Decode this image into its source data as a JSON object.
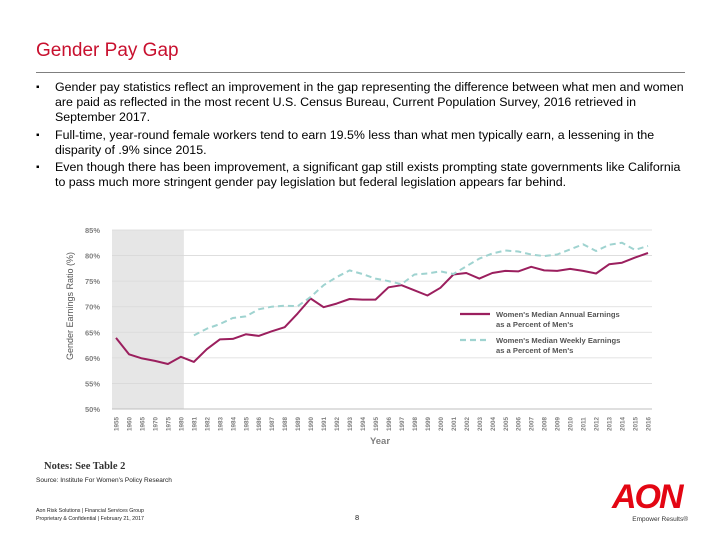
{
  "title": "Gender Pay Gap",
  "bullets": [
    "Gender pay statistics reflect an improvement in the gap representing the difference between what men and women are paid as reflected in the most recent U.S. Census Bureau, Current Population Survey, 2016 retrieved in September 2017.",
    "Full-time, year-round female workers tend to earn 19.5% less than what men typically earn, a lessening in the disparity of .9% since 2015.",
    "Even though there has been improvement, a significant gap still exists prompting state governments like California to pass much more stringent gender pay legislation but federal legislation appears far behind."
  ],
  "bullet_marker": "▪",
  "notes": "Notes: See Table 2",
  "source": "Source:  Institute For Women's Policy Research",
  "footer": {
    "line1": "Aon Risk Solutions | Financial Services Group",
    "line2": "Proprietary & Confidential | February 21, 2017",
    "page": "8"
  },
  "logo": {
    "text": "AON",
    "tagline": "Empower Results®"
  },
  "colors": {
    "title": "#c8102e",
    "annual": "#9b1f5e",
    "weekly": "#9fd3d0",
    "shade": "#e6e6e6"
  },
  "chart_data": {
    "type": "line",
    "xlabel": "Year",
    "ylabel": "Gender Earnings Ratio (%)",
    "ylim": [
      50,
      85
    ],
    "yticks": [
      "50%",
      "55%",
      "60%",
      "65%",
      "70%",
      "75%",
      "80%",
      "85%"
    ],
    "x": [
      "1955",
      "1960",
      "1965",
      "1970",
      "1975",
      "1980",
      "1981",
      "1982",
      "1983",
      "1984",
      "1985",
      "1986",
      "1987",
      "1988",
      "1989",
      "1990",
      "1991",
      "1992",
      "1993",
      "1994",
      "1995",
      "1996",
      "1997",
      "1998",
      "1999",
      "2000",
      "2001",
      "2002",
      "2003",
      "2004",
      "2005",
      "2006",
      "2007",
      "2008",
      "2009",
      "2010",
      "2011",
      "2012",
      "2013",
      "2014",
      "2015",
      "2016"
    ],
    "shaded_through": "1980",
    "legend_position": "right",
    "series": [
      {
        "name": "Women's Median Annual Earnings as a Percent of Men's",
        "style": "solid",
        "values": [
          63.9,
          60.7,
          59.9,
          59.4,
          58.8,
          60.2,
          59.2,
          61.7,
          63.6,
          63.7,
          64.6,
          64.3,
          65.2,
          66.0,
          68.7,
          71.6,
          69.9,
          70.6,
          71.5,
          71.4,
          71.4,
          73.8,
          74.2,
          73.2,
          72.2,
          73.7,
          76.3,
          76.6,
          75.5,
          76.6,
          77.0,
          76.9,
          77.8,
          77.1,
          77.0,
          77.4,
          77.0,
          76.5,
          78.3,
          78.6,
          79.6,
          80.5
        ]
      },
      {
        "name": "Women's Median Weekly Earnings as a Percent of Men's",
        "style": "dashed",
        "values": [
          null,
          null,
          null,
          null,
          null,
          null,
          64.4,
          65.7,
          66.6,
          67.8,
          68.1,
          69.5,
          70.0,
          70.2,
          70.1,
          71.9,
          74.2,
          75.8,
          77.1,
          76.4,
          75.5,
          75.0,
          74.4,
          76.3,
          76.5,
          76.9,
          76.4,
          77.9,
          79.4,
          80.4,
          81.0,
          80.8,
          80.2,
          79.9,
          80.2,
          81.2,
          82.2,
          80.9,
          82.1,
          82.5,
          81.1,
          81.9
        ]
      }
    ]
  }
}
